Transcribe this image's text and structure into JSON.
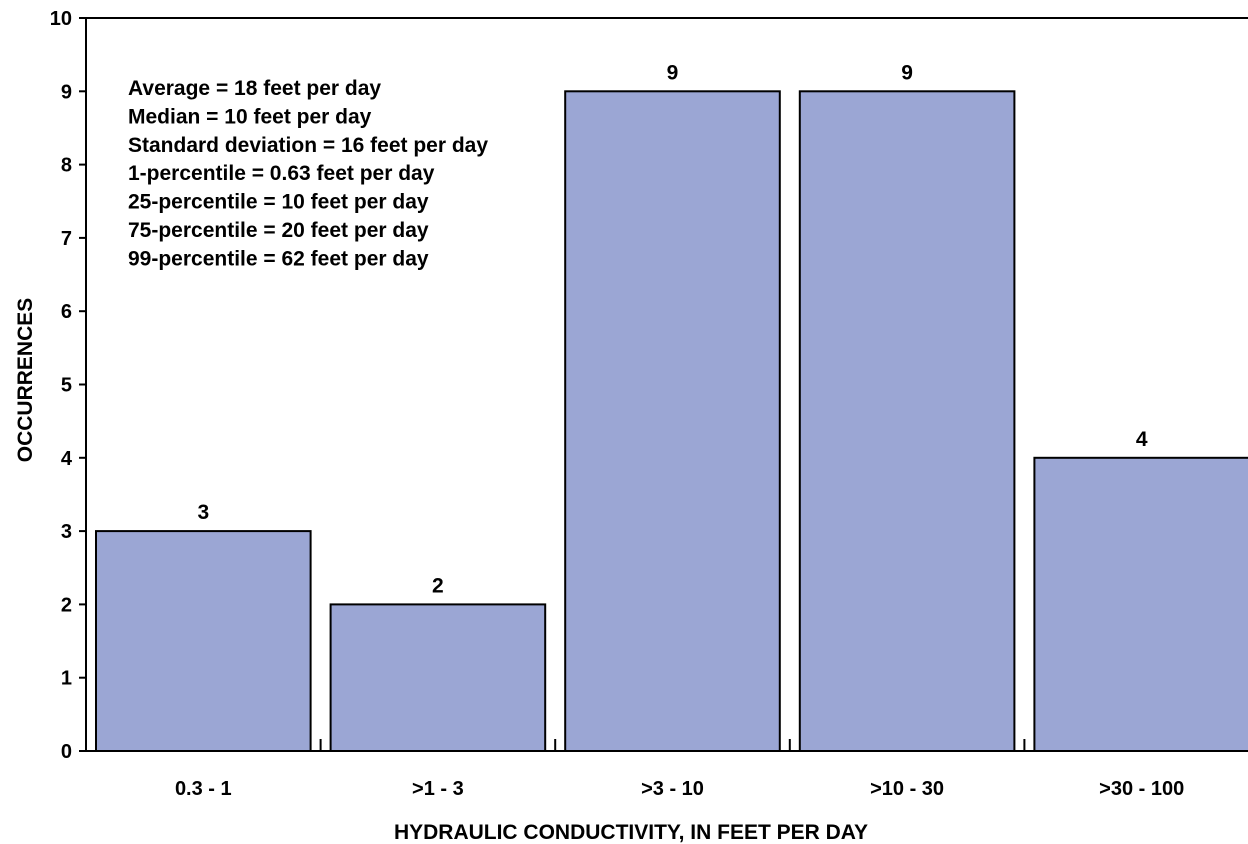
{
  "chart_data": {
    "type": "bar",
    "categories": [
      "0.3 - 1",
      ">1 - 3",
      ">3 - 10",
      ">10 - 30",
      ">30 - 100"
    ],
    "values": [
      3,
      2,
      9,
      9,
      4
    ],
    "data_labels": [
      "3",
      "2",
      "9",
      "9",
      "4"
    ],
    "xlabel": "HYDRAULIC CONDUCTIVITY, IN FEET PER DAY",
    "ylabel": "OCCURRENCES",
    "ylim": [
      0,
      10
    ],
    "yticks": [
      "0",
      "1",
      "2",
      "3",
      "4",
      "5",
      "6",
      "7",
      "8",
      "9",
      "10"
    ],
    "grid": false,
    "legend": "none",
    "annotations": [
      "Average = 18 feet per day",
      "Median = 10 feet per day",
      "Standard deviation = 16 feet per day",
      "1-percentile = 0.63 feet per day",
      "25-percentile = 10 feet per day",
      "75-percentile = 20 feet per day",
      "99-percentile = 62 feet per day"
    ],
    "bar_color": "#9ba6d4",
    "edge_color": "#000000"
  }
}
